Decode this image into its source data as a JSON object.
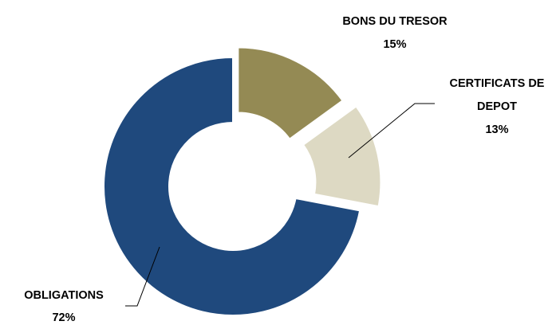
{
  "chart_data": {
    "type": "donut",
    "categories": [
      "BONS DU TRESOR",
      "CERTIFICATS DE DEPOT",
      "OBLIGATIONS"
    ],
    "values": [
      15,
      13,
      72
    ],
    "value_labels": [
      "15%",
      "13%",
      "72%"
    ],
    "colors": [
      "#948a54",
      "#ddd9c3",
      "#1f497d"
    ]
  }
}
